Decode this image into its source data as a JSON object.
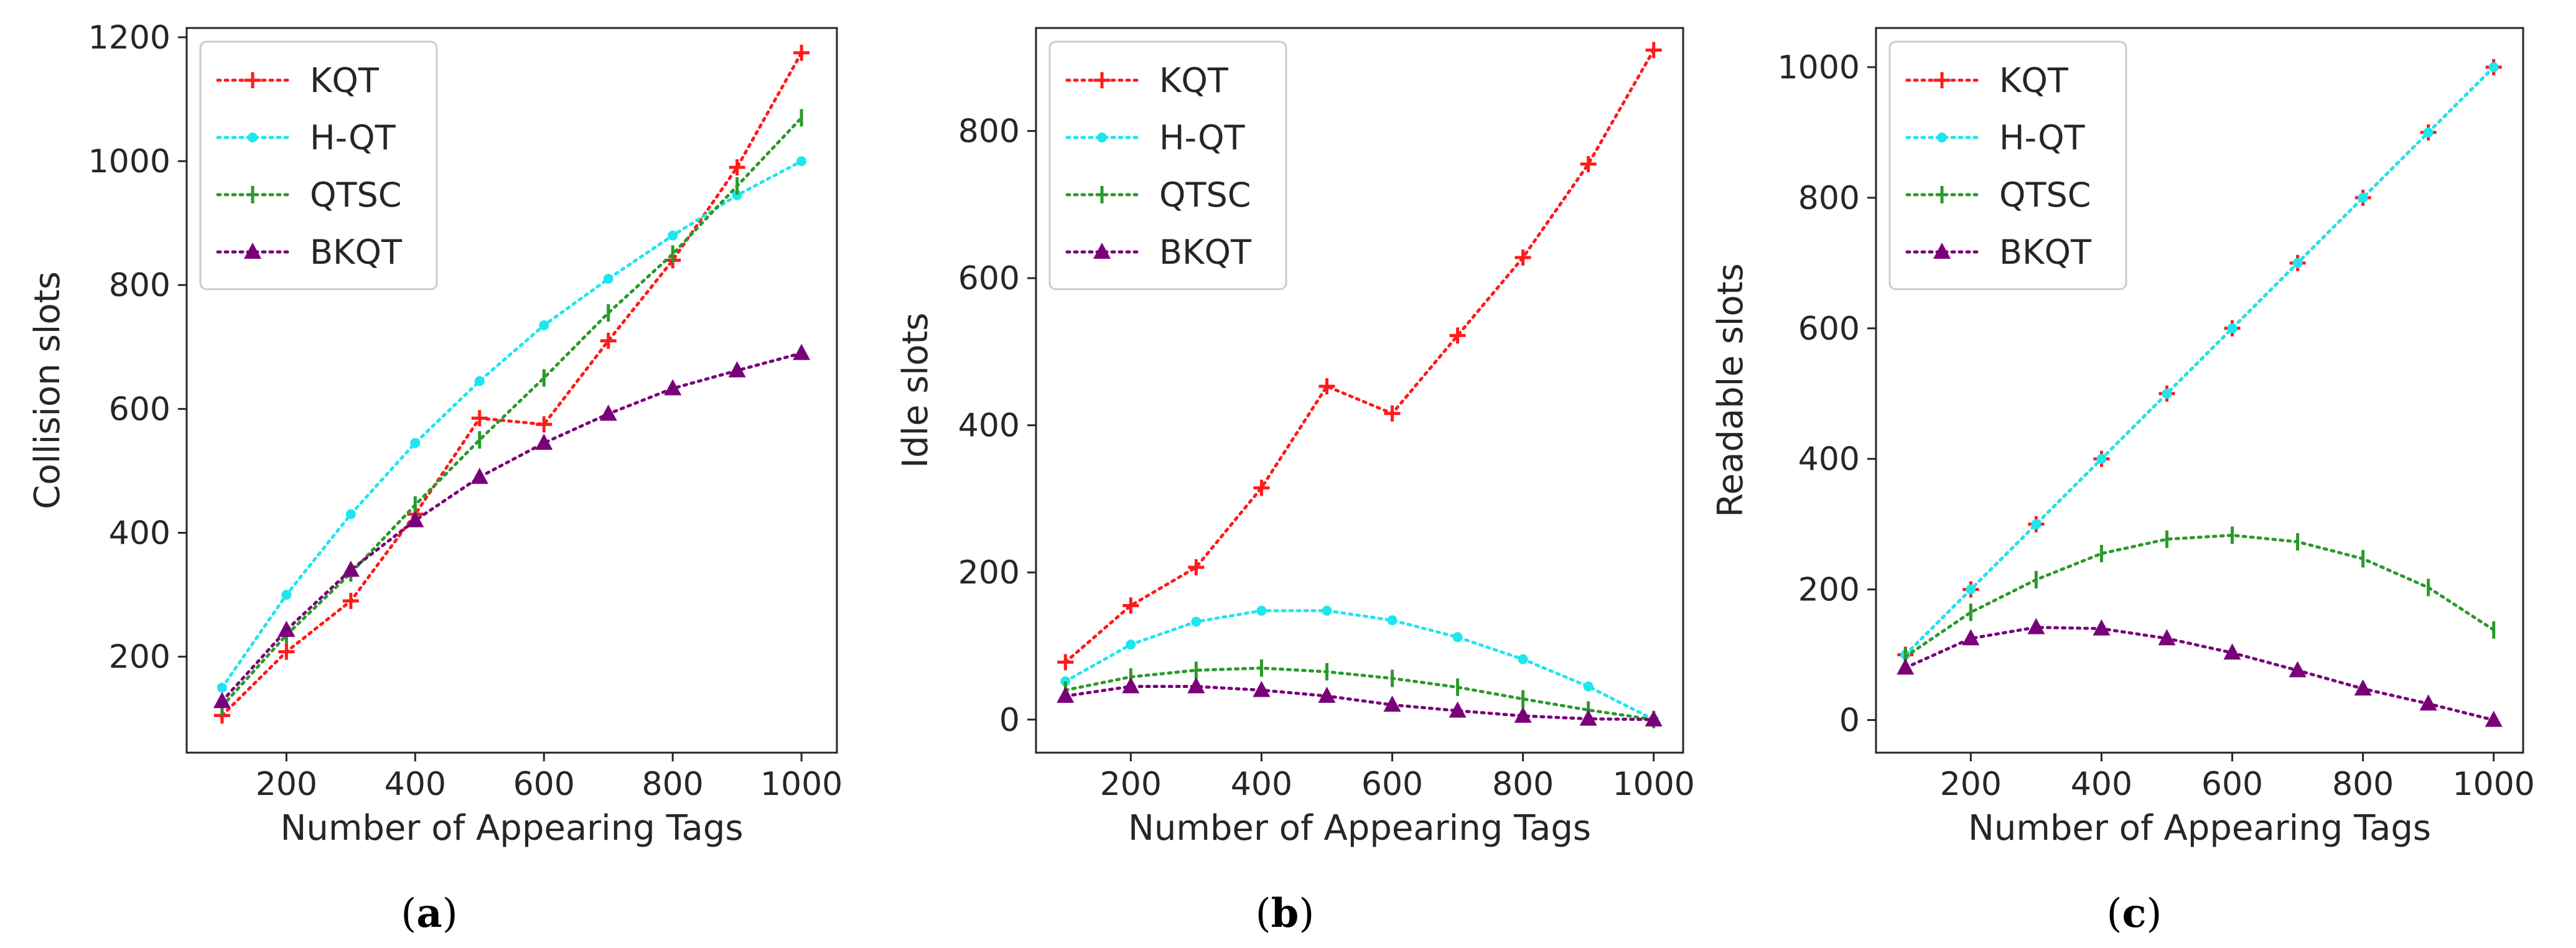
{
  "colors": {
    "KQT": "#ff1a1a",
    "H-QT": "#1ee6ee",
    "QTSC": "#2a9a2a",
    "BKQT": "#7a007a",
    "axis": "#262626"
  },
  "series_markers": {
    "KQT": "plus",
    "H-QT": "dot",
    "QTSC": "vline",
    "BKQT": "triangle"
  },
  "chart_data": [
    {
      "type": "line",
      "caption_open": "(",
      "caption_letter": "a",
      "caption_close": ")",
      "title": "",
      "xlabel": "Number of Appearing Tags",
      "ylabel": "Collision slots",
      "x": [
        100,
        200,
        300,
        400,
        500,
        600,
        700,
        800,
        900,
        1000
      ],
      "xlim": [
        45,
        1055
      ],
      "ylim": [
        45,
        1215
      ],
      "xticks": [
        200,
        400,
        600,
        800,
        1000
      ],
      "yticks": [
        200,
        400,
        600,
        800,
        1000,
        1200
      ],
      "legend": "top-left",
      "series": [
        {
          "name": "KQT",
          "values": [
            105,
            208,
            290,
            430,
            585,
            575,
            710,
            840,
            990,
            1175
          ]
        },
        {
          "name": "H-QT",
          "values": [
            150,
            300,
            430,
            545,
            645,
            735,
            810,
            880,
            945,
            1000
          ]
        },
        {
          "name": "QTSC",
          "values": [
            120,
            235,
            335,
            445,
            550,
            650,
            755,
            850,
            960,
            1070
          ]
        },
        {
          "name": "BKQT",
          "values": [
            128,
            243,
            340,
            420,
            490,
            545,
            592,
            633,
            662,
            690
          ]
        }
      ]
    },
    {
      "type": "line",
      "caption_open": "(",
      "caption_letter": "b",
      "caption_close": ")",
      "title": "",
      "xlabel": "Number of Appearing Tags",
      "ylabel": "Idle slots",
      "x": [
        100,
        200,
        300,
        400,
        500,
        600,
        700,
        800,
        900,
        1000
      ],
      "xlim": [
        55,
        1045
      ],
      "ylim": [
        -45,
        940
      ],
      "xticks": [
        200,
        400,
        600,
        800,
        1000
      ],
      "yticks": [
        0,
        200,
        400,
        600,
        800
      ],
      "legend": "top-left",
      "series": [
        {
          "name": "KQT",
          "values": [
            78,
            155,
            207,
            315,
            453,
            416,
            522,
            628,
            755,
            910
          ]
        },
        {
          "name": "H-QT",
          "values": [
            52,
            102,
            133,
            148,
            148,
            135,
            112,
            82,
            45,
            0
          ]
        },
        {
          "name": "QTSC",
          "values": [
            40,
            58,
            67,
            70,
            65,
            56,
            44,
            28,
            13,
            0
          ]
        },
        {
          "name": "BKQT",
          "values": [
            32,
            45,
            45,
            40,
            32,
            20,
            12,
            5,
            1,
            0
          ]
        }
      ]
    },
    {
      "type": "line",
      "caption_open": "(",
      "caption_letter": "c",
      "caption_close": ")",
      "title": "",
      "xlabel": "Number of Appearing Tags",
      "ylabel": "Readable slots",
      "x": [
        100,
        200,
        300,
        400,
        500,
        600,
        700,
        800,
        900,
        1000
      ],
      "xlim": [
        55,
        1045
      ],
      "ylim": [
        -50,
        1060
      ],
      "xticks": [
        200,
        400,
        600,
        800,
        1000
      ],
      "yticks": [
        0,
        200,
        400,
        600,
        800,
        1000
      ],
      "legend": "top-left",
      "series": [
        {
          "name": "KQT",
          "values": [
            100,
            200,
            300,
            400,
            500,
            600,
            700,
            800,
            900,
            1000
          ]
        },
        {
          "name": "H-QT",
          "values": [
            100,
            200,
            300,
            400,
            500,
            600,
            700,
            800,
            900,
            1000
          ]
        },
        {
          "name": "QTSC",
          "values": [
            97,
            165,
            215,
            255,
            277,
            283,
            273,
            247,
            203,
            138
          ]
        },
        {
          "name": "BKQT",
          "values": [
            80,
            125,
            142,
            140,
            125,
            103,
            76,
            48,
            25,
            0
          ]
        }
      ]
    }
  ]
}
